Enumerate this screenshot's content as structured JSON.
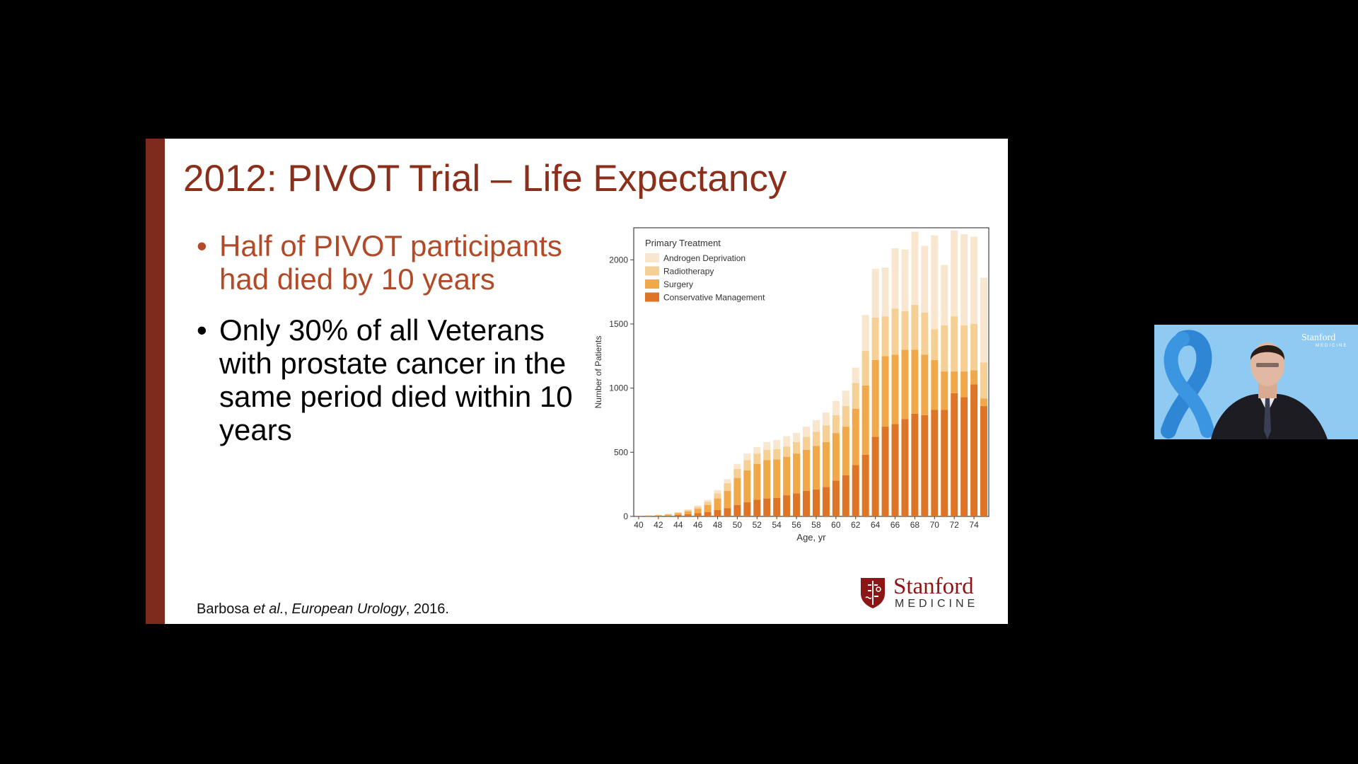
{
  "slide": {
    "title": "2012: PIVOT Trial – Life Expectancy",
    "bullet_char": "•",
    "bullets": [
      "Half of PIVOT participants had died by 10 years",
      "Only 30% of all Veterans with prostate cancer in the same period died within 10 years"
    ],
    "citation": {
      "authors": "Barbosa ",
      "etal": "et al.",
      "sep": ", ",
      "journal": "European Urology",
      "year": ", 2016."
    },
    "logo": {
      "word": "Stanford",
      "sub": "MEDICINE"
    }
  },
  "webcam": {
    "logo_word": "Stanford",
    "logo_sub": "MEDICINE"
  },
  "colors": {
    "title": "#8b2e1a",
    "bar": "#7b2a1c",
    "androgen": "#f9e6cf",
    "radiotherapy": "#f6cf94",
    "surgery": "#f0a848",
    "conservative": "#de7425"
  },
  "chart_data": {
    "type": "bar",
    "stacked": true,
    "xlabel": "Age, yr",
    "ylabel": "Number of Patients",
    "ylim": [
      0,
      2250
    ],
    "yticks": [
      0,
      500,
      1000,
      1500,
      2000
    ],
    "xtick_labels": [
      "40",
      "42",
      "44",
      "46",
      "48",
      "50",
      "52",
      "54",
      "56",
      "58",
      "60",
      "62",
      "64",
      "66",
      "68",
      "70",
      "72",
      "74"
    ],
    "legend_title": "Primary Treatment",
    "legend_position": "top-left",
    "categories": [
      40,
      41,
      42,
      43,
      44,
      45,
      46,
      47,
      48,
      49,
      50,
      51,
      52,
      53,
      54,
      55,
      56,
      57,
      58,
      59,
      60,
      61,
      62,
      63,
      64,
      65,
      66,
      67,
      68,
      69,
      70,
      71,
      72,
      73,
      74,
      75
    ],
    "series": [
      {
        "name": "Conservative Management",
        "color_key": "conservative",
        "values": [
          2,
          3,
          5,
          7,
          12,
          18,
          25,
          35,
          50,
          65,
          90,
          110,
          130,
          140,
          145,
          165,
          180,
          200,
          210,
          230,
          280,
          320,
          400,
          480,
          620,
          700,
          720,
          760,
          800,
          790,
          830,
          830,
          960,
          930,
          1030,
          860
        ]
      },
      {
        "name": "Surgery",
        "color_key": "surgery",
        "values": [
          3,
          4,
          5,
          8,
          13,
          22,
          35,
          55,
          90,
          135,
          210,
          250,
          280,
          300,
          300,
          300,
          310,
          320,
          340,
          350,
          370,
          380,
          440,
          540,
          600,
          550,
          540,
          540,
          500,
          470,
          390,
          300,
          170,
          200,
          110,
          60
        ]
      },
      {
        "name": "Radiotherapy",
        "color_key": "radiotherapy",
        "values": [
          1,
          2,
          2,
          3,
          5,
          10,
          15,
          25,
          40,
          60,
          70,
          80,
          80,
          80,
          80,
          80,
          90,
          100,
          110,
          130,
          140,
          160,
          200,
          270,
          330,
          310,
          360,
          300,
          350,
          330,
          240,
          360,
          430,
          360,
          360,
          280
        ]
      },
      {
        "name": "Androgen Deprivation",
        "color_key": "androgen",
        "values": [
          1,
          1,
          2,
          2,
          3,
          5,
          10,
          15,
          25,
          30,
          40,
          50,
          50,
          60,
          70,
          80,
          70,
          80,
          90,
          100,
          110,
          120,
          120,
          280,
          380,
          380,
          470,
          480,
          570,
          520,
          730,
          470,
          670,
          710,
          680,
          660
        ]
      }
    ]
  }
}
